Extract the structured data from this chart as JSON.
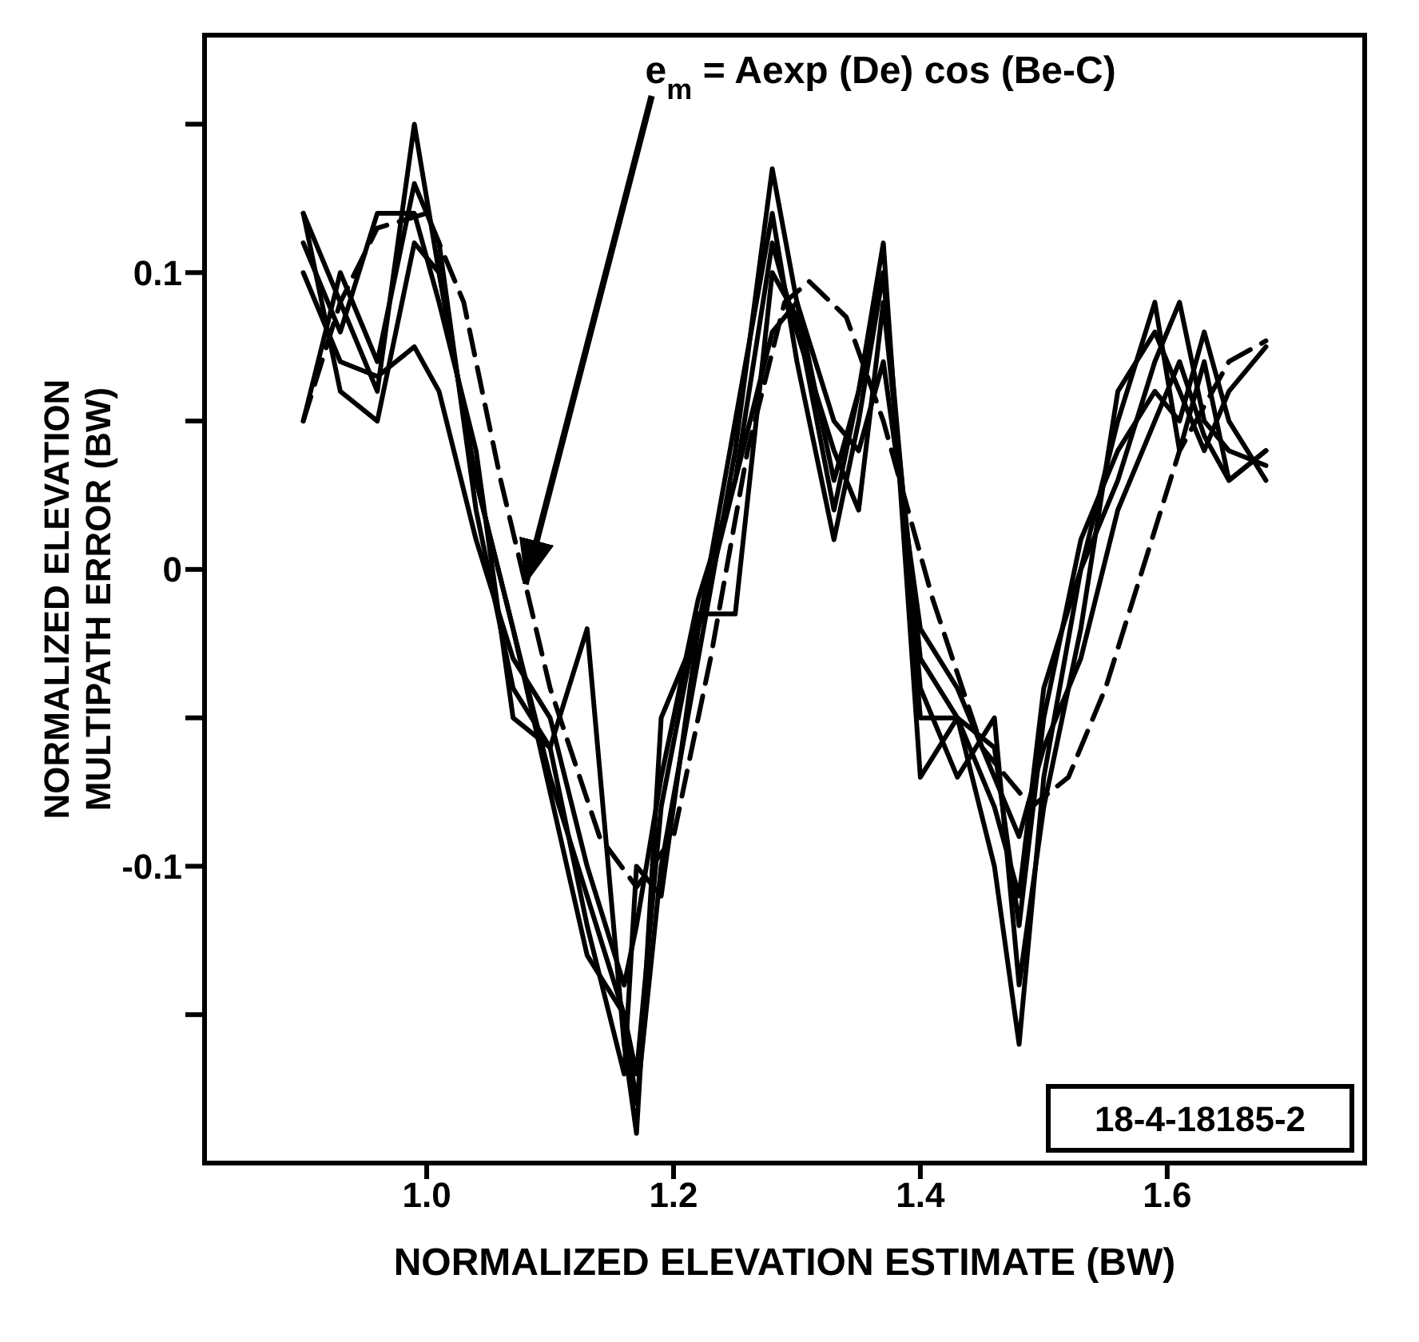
{
  "chart_data": {
    "type": "line",
    "xlabel": "NORMALIZED ELEVATION ESTIMATE (BW)",
    "ylabel": "NORMALIZED ELEVATION\nMULTIPATH ERROR (BW)",
    "annotations": [
      {
        "text": "e$_{m}$ = Aexp (De) cos (Be-C)",
        "x": 1.08,
        "y": -0.005
      },
      "18-4-18185-2"
    ],
    "x": [
      0.9,
      0.93,
      0.96,
      0.99,
      1.01,
      1.04,
      1.07,
      1.1,
      1.13,
      1.16,
      1.17,
      1.19,
      1.22,
      1.25,
      1.28,
      1.3,
      1.33,
      1.35,
      1.37,
      1.4,
      1.43,
      1.46,
      1.48,
      1.5,
      1.53,
      1.56,
      1.59,
      1.61,
      1.63,
      1.65,
      1.68
    ],
    "series": [
      {
        "color": "#000000",
        "values": [
          0.12,
          0.09,
          0.06,
          0.15,
          0.1,
          0.03,
          -0.02,
          -0.07,
          -0.11,
          -0.15,
          -0.18,
          -0.1,
          -0.03,
          0.04,
          0.135,
          0.09,
          0.03,
          0.06,
          0.11,
          -0.07,
          -0.05,
          -0.1,
          -0.16,
          -0.07,
          0.0,
          0.05,
          0.09,
          0.04,
          0.07,
          0.03,
          0.04
        ]
      },
      {
        "color": "#000000",
        "values": [
          0.11,
          0.08,
          0.12,
          0.12,
          0.09,
          0.04,
          -0.05,
          -0.06,
          -0.12,
          -0.17,
          -0.1,
          -0.11,
          -0.02,
          0.05,
          0.12,
          0.07,
          0.01,
          0.05,
          0.1,
          -0.04,
          -0.07,
          -0.05,
          -0.14,
          -0.08,
          -0.02,
          0.06,
          0.08,
          0.06,
          0.04,
          0.06,
          0.075
        ]
      },
      {
        "color": "#000000",
        "values": [
          0.05,
          0.1,
          0.07,
          0.13,
          0.11,
          0.02,
          -0.04,
          -0.06,
          -0.02,
          -0.16,
          -0.19,
          -0.05,
          -0.02,
          0.03,
          0.11,
          0.08,
          0.04,
          0.02,
          0.09,
          -0.03,
          -0.05,
          -0.06,
          -0.12,
          -0.05,
          0.01,
          0.04,
          0.06,
          0.05,
          0.08,
          0.05,
          0.03
        ]
      },
      {
        "color": "#000000",
        "values": [
          0.12,
          0.06,
          0.05,
          0.11,
          0.1,
          0.03,
          -0.02,
          -0.075,
          -0.13,
          -0.15,
          -0.17,
          -0.08,
          -0.015,
          -0.015,
          0.1,
          0.085,
          0.02,
          0.06,
          0.1,
          -0.05,
          -0.05,
          -0.08,
          -0.11,
          -0.04,
          0.0,
          0.03,
          0.07,
          0.09,
          0.05,
          0.04,
          0.035
        ]
      },
      {
        "color": "#000000",
        "values": [
          0.1,
          0.07,
          0.065,
          0.075,
          0.06,
          0.01,
          -0.03,
          -0.05,
          -0.1,
          -0.14,
          -0.12,
          -0.07,
          -0.01,
          0.03,
          0.08,
          0.09,
          0.05,
          0.04,
          0.07,
          -0.02,
          -0.04,
          -0.07,
          -0.09,
          -0.06,
          -0.03,
          0.02,
          0.05,
          0.07,
          0.045,
          0.03,
          0.04
        ]
      },
      {
        "color": "#000000",
        "line_style": "dashed",
        "x": [
          0.9,
          0.93,
          0.96,
          1.0,
          1.03,
          1.06,
          1.1,
          1.14,
          1.17,
          1.2,
          1.23,
          1.26,
          1.29,
          1.31,
          1.34,
          1.37,
          1.41,
          1.45,
          1.49,
          1.52,
          1.55,
          1.58,
          1.61,
          1.65,
          1.68
        ],
        "values": [
          0.05,
          0.09,
          0.115,
          0.12,
          0.09,
          0.03,
          -0.04,
          -0.09,
          -0.107,
          -0.09,
          -0.03,
          0.04,
          0.09,
          0.097,
          0.085,
          0.05,
          -0.01,
          -0.06,
          -0.08,
          -0.07,
          -0.04,
          0.0,
          0.04,
          0.07,
          0.077
        ]
      }
    ],
    "xlim": [
      0.82,
      1.76
    ],
    "xticks": [
      {
        "value": 1.0,
        "label": "1.0"
      },
      {
        "value": 1.2,
        "label": "1.2"
      },
      {
        "value": 1.4,
        "label": "1.4"
      },
      {
        "value": 1.6,
        "label": "1.6"
      }
    ],
    "ylim": [
      -0.2,
      0.18
    ],
    "yticks": [
      {
        "value": -0.15,
        "label": null
      },
      {
        "value": -0.1,
        "label": "-0.1"
      },
      {
        "value": -0.05,
        "label": null
      },
      0,
      {
        "value": 0.05,
        "label": null
      },
      {
        "value": 0.1,
        "label": "0.1"
      },
      {
        "value": 0.15,
        "label": null
      }
    ],
    "grid": false,
    "marker": "none",
    "line_style": "solid"
  }
}
